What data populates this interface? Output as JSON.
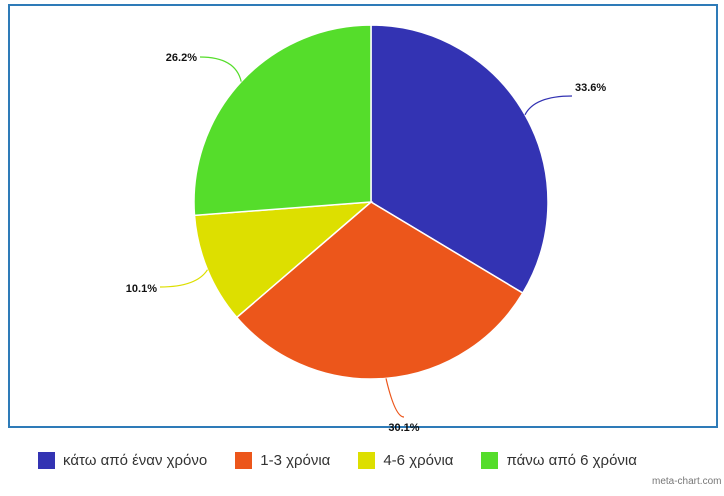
{
  "chart_data": {
    "type": "pie",
    "slices": [
      {
        "label": "κάτω από έναν χρόνο",
        "value": 33.6,
        "value_label": "33.6%",
        "color": "#3333b3"
      },
      {
        "label": "1-3 χρόνια",
        "value": 30.1,
        "value_label": "30.1%",
        "color": "#ec561b"
      },
      {
        "label": "4-6 χρόνια",
        "value": 10.1,
        "value_label": "10.1%",
        "color": "#dddf00"
      },
      {
        "label": "πάνω από 6 χρόνια",
        "value": 26.2,
        "value_label": "26.2%",
        "color": "#55dd2b"
      }
    ],
    "legend_position": "bottom",
    "start_angle_deg": 0,
    "direction": "clockwise"
  },
  "footer": {
    "credit": "meta-chart.com"
  }
}
